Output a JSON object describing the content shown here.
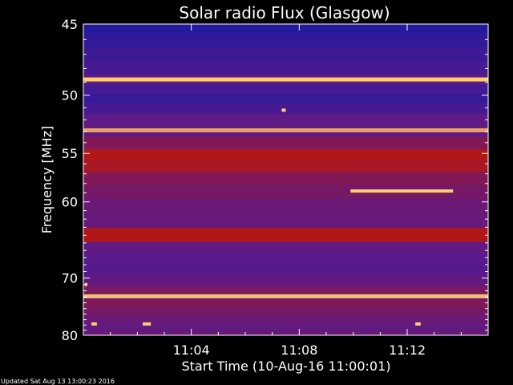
{
  "chart_data": {
    "type": "heatmap",
    "title": "Solar radio Flux (Glasgow)",
    "xlabel": "Start Time (10-Aug-16 11:00:01)",
    "ylabel": "Frequency [MHz]",
    "x_tick_labels": [
      "11:04",
      "11:08",
      "11:12"
    ],
    "x_tick_minutes": [
      4,
      8,
      12
    ],
    "xlim_minutes": [
      0,
      15
    ],
    "y_tick_labels": [
      "45",
      "50",
      "55",
      "60",
      "70",
      "80"
    ],
    "y_tick_values": [
      45,
      50,
      55,
      60,
      70,
      80
    ],
    "ylim": [
      45,
      80
    ],
    "y_scale": "reciprocal",
    "colors": {
      "background": "#000000",
      "low": "#1a1aa0",
      "mid": "#5a1a8c",
      "high": "#b01818",
      "peak": "#ffd070"
    },
    "bands": [
      {
        "freq": 45.2,
        "level": 0.05
      },
      {
        "freq": 46.0,
        "level": 0.12
      },
      {
        "freq": 47.0,
        "level": 0.18
      },
      {
        "freq": 48.0,
        "level": 0.22
      },
      {
        "freq": 48.8,
        "level": 1.0
      },
      {
        "freq": 49.6,
        "level": 0.2
      },
      {
        "freq": 50.3,
        "level": 0.15
      },
      {
        "freq": 51.0,
        "level": 0.22
      },
      {
        "freq": 52.0,
        "level": 0.35
      },
      {
        "freq": 52.9,
        "level": 0.95
      },
      {
        "freq": 54.0,
        "level": 0.55
      },
      {
        "freq": 55.2,
        "level": 0.8
      },
      {
        "freq": 56.2,
        "level": 0.75
      },
      {
        "freq": 57.5,
        "level": 0.55
      },
      {
        "freq": 58.8,
        "level": 0.48
      },
      {
        "freq": 60.5,
        "level": 0.42
      },
      {
        "freq": 62.0,
        "level": 0.4
      },
      {
        "freq": 64.2,
        "level": 0.8
      },
      {
        "freq": 65.5,
        "level": 0.38
      },
      {
        "freq": 67.0,
        "level": 0.33
      },
      {
        "freq": 68.5,
        "level": 0.3
      },
      {
        "freq": 70.5,
        "level": 0.38
      },
      {
        "freq": 72.0,
        "level": 0.5
      },
      {
        "freq": 72.9,
        "level": 0.98
      },
      {
        "freq": 74.0,
        "level": 0.55
      },
      {
        "freq": 75.5,
        "level": 0.48
      },
      {
        "freq": 77.0,
        "level": 0.42
      },
      {
        "freq": 78.5,
        "level": 0.38
      },
      {
        "freq": 80.0,
        "level": 0.42
      }
    ],
    "bursts": [
      {
        "t_start": 9.9,
        "t_end": 13.7,
        "freq": 58.8
      },
      {
        "t_start": 2.2,
        "t_end": 2.5,
        "freq": 77.8
      },
      {
        "t_start": 0.3,
        "t_end": 0.5,
        "freq": 77.8
      },
      {
        "t_start": 12.3,
        "t_end": 12.5,
        "freq": 77.8
      },
      {
        "t_start": 7.35,
        "t_end": 7.5,
        "freq": 51.2
      },
      {
        "t_start": 0.05,
        "t_end": 0.15,
        "freq": 71.0
      }
    ]
  },
  "footer": {
    "updated": "Updated Sat Aug 13 13:00:23 2016"
  }
}
